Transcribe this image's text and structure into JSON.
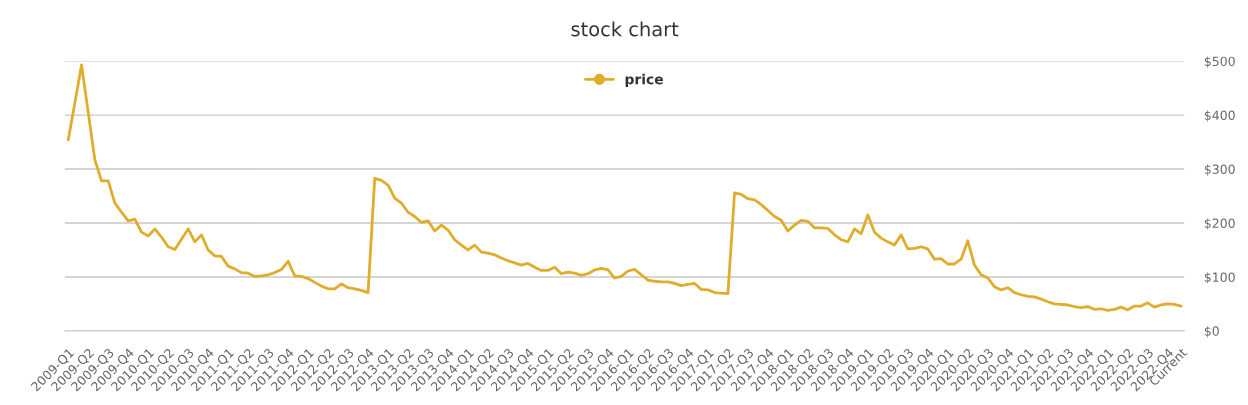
{
  "chart_data": {
    "type": "line",
    "title": "stock chart",
    "categories": [
      "2009-Q1",
      null,
      null,
      "2009-Q2",
      null,
      null,
      "2009-Q3",
      null,
      null,
      "2009-Q4",
      null,
      null,
      "2010-Q1",
      null,
      null,
      "2010-Q2",
      null,
      null,
      "2010-Q3",
      null,
      null,
      "2010-Q4",
      null,
      null,
      "2011-Q1",
      null,
      null,
      "2011-Q2",
      null,
      null,
      "2011-Q3",
      null,
      null,
      "2011-Q4",
      null,
      null,
      "2012-Q1",
      null,
      null,
      "2012-Q2",
      null,
      null,
      "2012-Q3",
      null,
      null,
      "2012-Q4",
      null,
      null,
      "2013-Q1",
      null,
      null,
      "2013-Q2",
      null,
      null,
      "2013-Q3",
      null,
      null,
      "2013-Q4",
      null,
      null,
      "2014-Q1",
      null,
      null,
      "2014-Q2",
      null,
      null,
      "2014-Q3",
      null,
      null,
      "2014-Q4",
      null,
      null,
      "2015-Q1",
      null,
      null,
      "2015-Q2",
      null,
      null,
      "2015-Q3",
      null,
      null,
      "2015-Q4",
      null,
      null,
      "2016-Q1",
      null,
      null,
      "2016-Q2",
      null,
      null,
      "2016-Q3",
      null,
      null,
      "2016-Q4",
      null,
      null,
      "2017-Q1",
      null,
      null,
      "2017-Q2",
      null,
      null,
      "2017-Q3",
      null,
      null,
      "2017-Q4",
      null,
      null,
      "2018-Q1",
      null,
      null,
      "2018-Q2",
      null,
      null,
      "2018-Q3",
      null,
      null,
      "2018-Q4",
      null,
      null,
      "2019-Q1",
      null,
      null,
      "2019-Q2",
      null,
      null,
      "2019-Q3",
      null,
      null,
      "2019-Q4",
      null,
      null,
      "2020-Q1",
      null,
      null,
      "2020-Q2",
      null,
      null,
      "2020-Q3",
      null,
      null,
      "2020-Q4",
      null,
      null,
      "2021-Q1",
      null,
      null,
      "2021-Q2",
      null,
      null,
      "2021-Q3",
      null,
      null,
      "2021-Q4",
      null,
      null,
      "2022-Q1",
      null,
      null,
      "2022-Q2",
      null,
      null,
      "2022-Q3",
      null,
      null,
      "2022-Q4",
      null,
      "Current"
    ],
    "series": [
      {
        "name": "price",
        "color": "#e0ac2b",
        "values": [
          354,
          423,
          493,
          405,
          317,
          278,
          278,
          237,
          220,
          204,
          207,
          183,
          176,
          189,
          174,
          156,
          151,
          170,
          189,
          165,
          178,
          150,
          139,
          138,
          120,
          115,
          108,
          107,
          101,
          102,
          104,
          108,
          114,
          129,
          102,
          101,
          97,
          90,
          83,
          78,
          78,
          87,
          80,
          78,
          75,
          71,
          283,
          279,
          270,
          246,
          237,
          220,
          212,
          201,
          204,
          185,
          196,
          187,
          169,
          159,
          150,
          159,
          146,
          144,
          141,
          135,
          130,
          126,
          122,
          125,
          118,
          112,
          112,
          118,
          106,
          109,
          107,
          103,
          106,
          113,
          116,
          113,
          98,
          101,
          111,
          114,
          104,
          94,
          92,
          91,
          91,
          88,
          84,
          86,
          88,
          77,
          76,
          71,
          70,
          69,
          256,
          253,
          245,
          243,
          234,
          223,
          212,
          205,
          185,
          196,
          205,
          203,
          191,
          191,
          190,
          178,
          169,
          165,
          189,
          180,
          215,
          183,
          172,
          165,
          159,
          178,
          152,
          153,
          156,
          152,
          133,
          134,
          124,
          124,
          133,
          167,
          122,
          104,
          98,
          82,
          76,
          80,
          71,
          67,
          64,
          63,
          59,
          54,
          50,
          49,
          48,
          45,
          43,
          45,
          40,
          41,
          38,
          40,
          44,
          39,
          46,
          46,
          52,
          44,
          48,
          50,
          49,
          46
        ]
      }
    ],
    "ylim": [
      0,
      500
    ],
    "yticks": [
      {
        "value": 0,
        "label": "$0"
      },
      {
        "value": 100,
        "label": "$100"
      },
      {
        "value": 200,
        "label": "$200"
      },
      {
        "value": 300,
        "label": "$300"
      },
      {
        "value": 400,
        "label": "$400"
      },
      {
        "value": 500,
        "label": "$500"
      }
    ],
    "grid": "y",
    "legend": "top",
    "line_style": "solid"
  }
}
